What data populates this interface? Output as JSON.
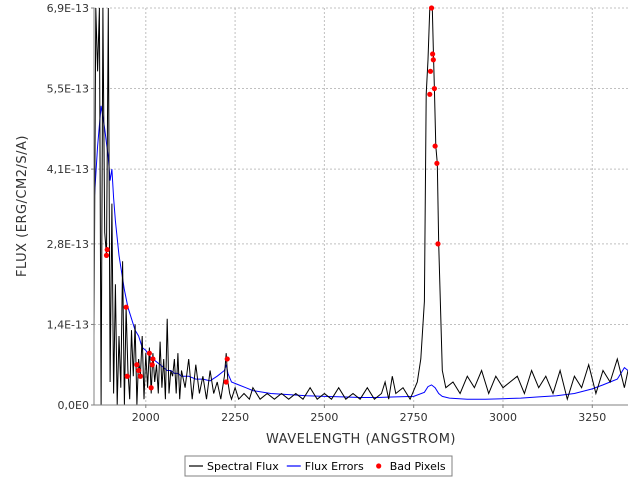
{
  "chart_data": {
    "type": "line",
    "xlabel": "WAVELENGTH (ANGSTROM)",
    "ylabel": "FLUX (ERG/CM2/S/A)",
    "xlim": [
      1855,
      3350
    ],
    "ylim": [
      0,
      6.9e-13
    ],
    "x_ticks": [
      2000,
      2250,
      2500,
      2750,
      3000,
      3250
    ],
    "x_tick_labels": [
      "2000",
      "2250",
      "2500",
      "2750",
      "3000",
      "3250"
    ],
    "y_ticks": [
      0,
      1.4e-13,
      2.8e-13,
      4.1e-13,
      5.5e-13,
      6.9e-13
    ],
    "y_tick_labels": [
      "0,0E0",
      "1,4E-13",
      "2,8E-13",
      "4,1E-13",
      "5,5E-13",
      "6,9E-13"
    ],
    "grid": true,
    "legend_position": "bottom-center",
    "series": [
      {
        "name": "Spectral Flux",
        "color": "#000000",
        "x": [
          1855,
          1860,
          1865,
          1870,
          1875,
          1880,
          1885,
          1890,
          1895,
          1900,
          1905,
          1910,
          1915,
          1920,
          1925,
          1930,
          1935,
          1940,
          1945,
          1950,
          1955,
          1960,
          1965,
          1970,
          1975,
          1980,
          1985,
          1990,
          1995,
          2000,
          2005,
          2010,
          2015,
          2020,
          2025,
          2030,
          2035,
          2040,
          2045,
          2050,
          2055,
          2060,
          2065,
          2070,
          2075,
          2080,
          2085,
          2090,
          2095,
          2100,
          2110,
          2120,
          2130,
          2140,
          2150,
          2160,
          2170,
          2180,
          2190,
          2200,
          2210,
          2220,
          2225,
          2230,
          2235,
          2240,
          2250,
          2260,
          2275,
          2290,
          2300,
          2320,
          2340,
          2360,
          2380,
          2400,
          2420,
          2440,
          2460,
          2480,
          2500,
          2520,
          2540,
          2560,
          2580,
          2600,
          2620,
          2640,
          2660,
          2670,
          2680,
          2690,
          2700,
          2720,
          2740,
          2760,
          2770,
          2780,
          2785,
          2790,
          2795,
          2798,
          2802,
          2805,
          2808,
          2812,
          2816,
          2820,
          2830,
          2840,
          2860,
          2880,
          2900,
          2920,
          2940,
          2960,
          2980,
          3000,
          3020,
          3040,
          3060,
          3080,
          3100,
          3120,
          3140,
          3160,
          3180,
          3200,
          3220,
          3240,
          3260,
          3280,
          3300,
          3320,
          3340,
          3350
        ],
        "y": [
          1.2e-13,
          6.9e-13,
          5.8e-13,
          6.9e-13,
          0,
          6.9e-13,
          3e-13,
          2.6e-13,
          6.9e-13,
          4e-14,
          3.5e-13,
          2e-14,
          2.1e-13,
          0,
          1.2e-13,
          3e-14,
          2.5e-13,
          0,
          1.7e-13,
          6e-14,
          1e-14,
          1.3e-13,
          5e-14,
          1.4e-13,
          0,
          8e-14,
          5e-14,
          1.2e-13,
          1e-14,
          9e-14,
          3e-14,
          1e-13,
          2e-14,
          9e-14,
          4e-14,
          7e-14,
          2e-14,
          1.1e-13,
          3e-14,
          8e-14,
          1e-14,
          1.5e-13,
          2e-14,
          6e-14,
          5e-14,
          8e-14,
          2e-14,
          9e-14,
          1e-14,
          6e-14,
          3e-14,
          8e-14,
          1e-14,
          7e-14,
          2e-14,
          5e-14,
          1e-14,
          6e-14,
          2e-14,
          4e-14,
          1e-14,
          5e-14,
          9e-14,
          4e-14,
          2e-14,
          1e-14,
          3e-14,
          1e-14,
          2e-14,
          1e-14,
          3e-14,
          1e-14,
          2e-14,
          1e-14,
          2e-14,
          1e-14,
          2e-14,
          1e-14,
          3e-14,
          1e-14,
          2e-14,
          1e-14,
          3e-14,
          1e-14,
          2e-14,
          1e-14,
          3e-14,
          1e-14,
          2e-14,
          4e-14,
          1e-14,
          5e-14,
          2e-14,
          3e-14,
          1e-14,
          4e-14,
          8e-14,
          1.8e-13,
          5.4e-13,
          6e-13,
          6.9e-13,
          6.9e-13,
          6.9e-13,
          6.2e-13,
          5.5e-13,
          4.5e-13,
          4.2e-13,
          2.8e-13,
          6e-14,
          3e-14,
          4e-14,
          2e-14,
          5e-14,
          3e-14,
          6e-14,
          2e-14,
          5e-14,
          3e-14,
          4e-14,
          5e-14,
          2e-14,
          6e-14,
          3e-14,
          5e-14,
          2e-14,
          6e-14,
          1e-14,
          5e-14,
          3e-14,
          7e-14,
          2e-14,
          6e-14,
          4e-14,
          8e-14,
          3e-14,
          6e-14
        ]
      },
      {
        "name": "Flux Errors",
        "color": "#0000ff",
        "x": [
          1855,
          1865,
          1875,
          1885,
          1895,
          1900,
          1905,
          1910,
          1915,
          1920,
          1925,
          1930,
          1940,
          1950,
          1960,
          1970,
          1980,
          1990,
          2000,
          2010,
          2020,
          2030,
          2040,
          2050,
          2060,
          2070,
          2080,
          2090,
          2100,
          2120,
          2140,
          2160,
          2180,
          2200,
          2220,
          2225,
          2230,
          2240,
          2260,
          2280,
          2300,
          2350,
          2400,
          2450,
          2500,
          2550,
          2600,
          2650,
          2700,
          2750,
          2780,
          2790,
          2800,
          2810,
          2820,
          2830,
          2850,
          2900,
          2950,
          3000,
          3050,
          3100,
          3150,
          3200,
          3250,
          3280,
          3300,
          3320,
          3330,
          3340,
          3350
        ],
        "y": [
          3.5e-13,
          4.5e-13,
          5.2e-13,
          4.8e-13,
          4.3e-13,
          3.9e-13,
          4.1e-13,
          3.6e-13,
          3.2e-13,
          2.9e-13,
          2.6e-13,
          2.4e-13,
          2e-13,
          1.7e-13,
          1.5e-13,
          1.3e-13,
          1.2e-13,
          1e-13,
          9.5e-14,
          8.5e-14,
          8e-14,
          7.5e-14,
          7e-14,
          6.5e-14,
          6e-14,
          6e-14,
          5.5e-14,
          5.5e-14,
          5e-14,
          5e-14,
          4.5e-14,
          4.5e-14,
          4.2e-14,
          5e-14,
          6e-14,
          7e-14,
          5.5e-14,
          4e-14,
          3.5e-14,
          3e-14,
          2.5e-14,
          2e-14,
          1.8e-14,
          1.6e-14,
          1.5e-14,
          1.4e-14,
          1.3e-14,
          1.3e-14,
          1.4e-14,
          1.5e-14,
          2.2e-14,
          3.2e-14,
          3.5e-14,
          3e-14,
          2e-14,
          1.5e-14,
          1.2e-14,
          1e-14,
          1e-14,
          1.1e-14,
          1.2e-14,
          1.4e-14,
          1.6e-14,
          2e-14,
          2.8e-14,
          3.5e-14,
          4e-14,
          4.5e-14,
          5.5e-14,
          6.5e-14,
          6e-14
        ]
      },
      {
        "name": "Bad Pixels",
        "color": "#ff0000",
        "x": [
          1890,
          1892,
          1945,
          1948,
          1975,
          1980,
          1985,
          2010,
          2015,
          2018,
          2020,
          2225,
          2228,
          2795,
          2797,
          2800,
          2803,
          2805,
          2808,
          2810,
          2815,
          2818
        ],
        "y": [
          2.6e-13,
          2.7e-13,
          1.7e-13,
          5e-14,
          7e-14,
          6e-14,
          5e-14,
          9e-14,
          3e-14,
          7e-14,
          8e-14,
          4e-14,
          8e-14,
          5.4e-13,
          5.8e-13,
          6.9e-13,
          6.1e-13,
          6e-13,
          5.5e-13,
          4.5e-13,
          4.2e-13,
          2.8e-13
        ]
      }
    ]
  },
  "legend": {
    "items": [
      {
        "name": "Spectral Flux",
        "color": "#000000",
        "kind": "line"
      },
      {
        "name": "Flux Errors",
        "color": "#0000ff",
        "kind": "line"
      },
      {
        "name": "Bad Pixels",
        "color": "#ff0000",
        "kind": "dot"
      }
    ]
  }
}
